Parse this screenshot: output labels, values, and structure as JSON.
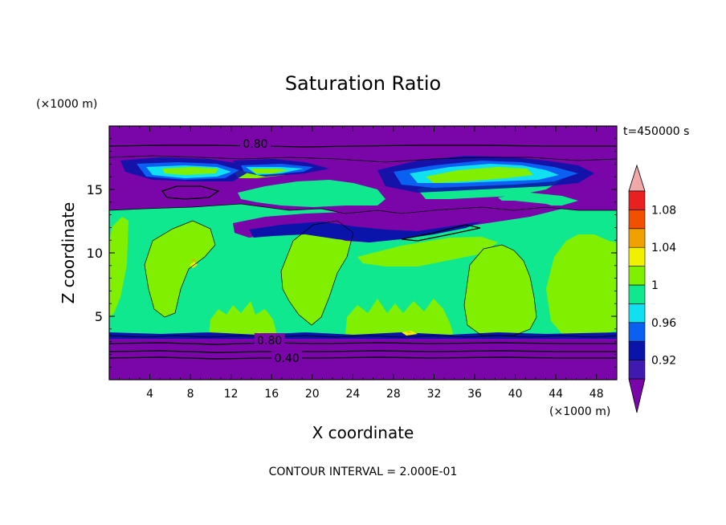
{
  "chart_data": {
    "type": "heatmap",
    "title": "Saturation Ratio",
    "xlabel": "X coordinate",
    "ylabel": "Z coordinate",
    "x_unit": "(×1000 m)",
    "y_unit": "(×1000 m)",
    "time_label": "t=450000 s",
    "footer": "CONTOUR INTERVAL = 2.000E-01",
    "xlim": [
      0,
      50
    ],
    "ylim": [
      0,
      20
    ],
    "x_ticks": [
      4,
      8,
      12,
      16,
      20,
      24,
      28,
      32,
      36,
      40,
      44,
      48
    ],
    "y_ticks": [
      5,
      10,
      15
    ],
    "x_tick_labels": [
      "4",
      "8",
      "12",
      "16",
      "20",
      "24",
      "28",
      "32",
      "36",
      "40",
      "44",
      "48"
    ],
    "y_tick_labels": [
      "5",
      "10",
      "15"
    ],
    "colorbar": {
      "labels": [
        "0.92",
        "0.96",
        "1",
        "1.04",
        "1.08"
      ],
      "label_values": [
        0.92,
        0.96,
        1.0,
        1.04,
        1.08
      ],
      "levels": [
        {
          "min": null,
          "max": 0.9,
          "color": "#7a05a8"
        },
        {
          "min": 0.9,
          "max": 0.92,
          "color": "#4019b0"
        },
        {
          "min": 0.92,
          "max": 0.94,
          "color": "#0a14aa"
        },
        {
          "min": 0.94,
          "max": 0.96,
          "color": "#0a60f0"
        },
        {
          "min": 0.96,
          "max": 0.98,
          "color": "#10e0f0"
        },
        {
          "min": 0.98,
          "max": 1.0,
          "color": "#10e890"
        },
        {
          "min": 1.0,
          "max": 1.02,
          "color": "#80f000"
        },
        {
          "min": 1.02,
          "max": 1.04,
          "color": "#f0f000"
        },
        {
          "min": 1.04,
          "max": 1.06,
          "color": "#f0a000"
        },
        {
          "min": 1.06,
          "max": 1.08,
          "color": "#f05000"
        },
        {
          "min": 1.08,
          "max": 1.1,
          "color": "#e82020"
        },
        {
          "min": 1.1,
          "max": null,
          "color": "#f0a8a8"
        }
      ]
    },
    "contour_labels": [
      {
        "text": "0.80",
        "x": 14.4,
        "z": 18.6
      },
      {
        "text": "0.80",
        "x": 15.8,
        "z": 3.1
      },
      {
        "text": "0.40",
        "x": 17.5,
        "z": 1.7
      }
    ],
    "regions": {
      "upper_dry_layer_z": [
        17.6,
        20.0
      ],
      "upper_moist_band_z": [
        13.6,
        17.6
      ],
      "mid_dry_tongue_z": [
        10.8,
        12.8
      ],
      "main_cloud_layer_z": [
        3.6,
        13.6
      ],
      "lower_dry_layer_z": [
        0,
        3.4
      ]
    }
  }
}
